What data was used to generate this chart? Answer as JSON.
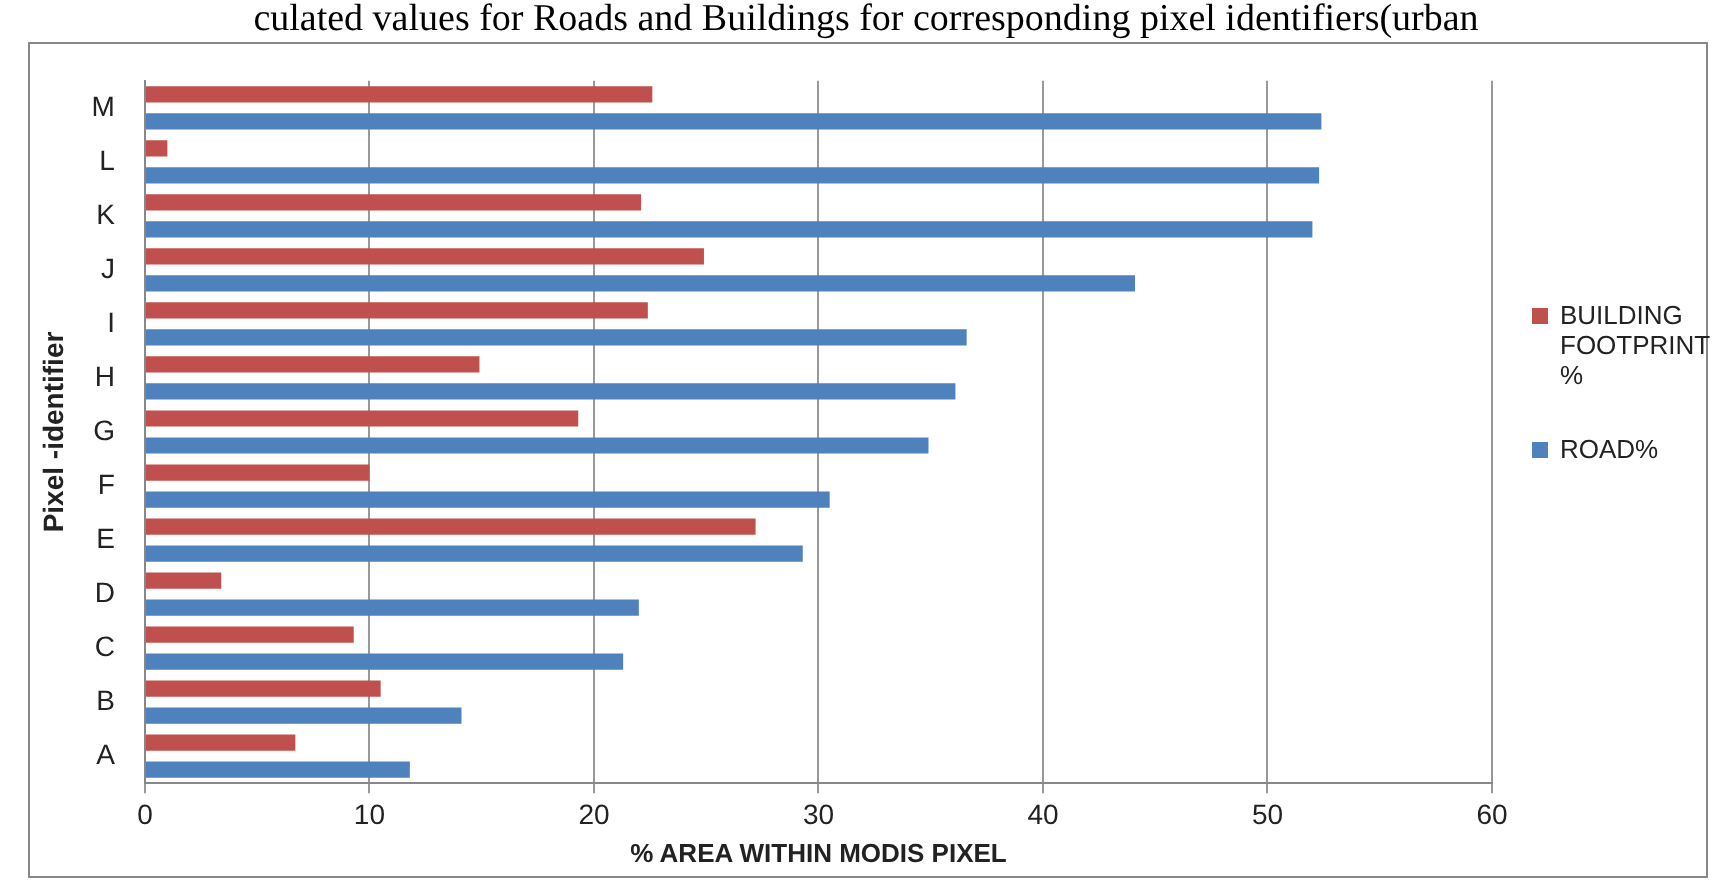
{
  "chart_data": {
    "type": "bar",
    "orientation": "horizontal",
    "title": "culated values for Roads and Buildings for corresponding pixel identifiers(urban",
    "xlabel": "% AREA WITHIN MODIS PIXEL",
    "ylabel": "Pixel -identifier",
    "categories": [
      "M",
      "L",
      "K",
      "J",
      "I",
      "H",
      "G",
      "F",
      "E",
      "D",
      "C",
      "B",
      "A"
    ],
    "series": [
      {
        "name": "BUILDING FOOTPRINT %",
        "color": "#c0504d",
        "values": [
          22.6,
          1.0,
          22.1,
          24.9,
          22.4,
          14.9,
          19.3,
          10.0,
          27.2,
          3.4,
          9.3,
          10.5,
          6.7
        ]
      },
      {
        "name": "ROAD%",
        "color": "#4f81bd",
        "values": [
          52.4,
          52.3,
          52.0,
          44.1,
          36.6,
          36.1,
          34.9,
          30.5,
          29.3,
          22.0,
          21.3,
          14.1,
          11.8
        ]
      }
    ],
    "xlim": [
      0,
      60
    ],
    "xticks": [
      0,
      10,
      20,
      30,
      40,
      50,
      60
    ],
    "grid": "x",
    "legend": "right"
  }
}
